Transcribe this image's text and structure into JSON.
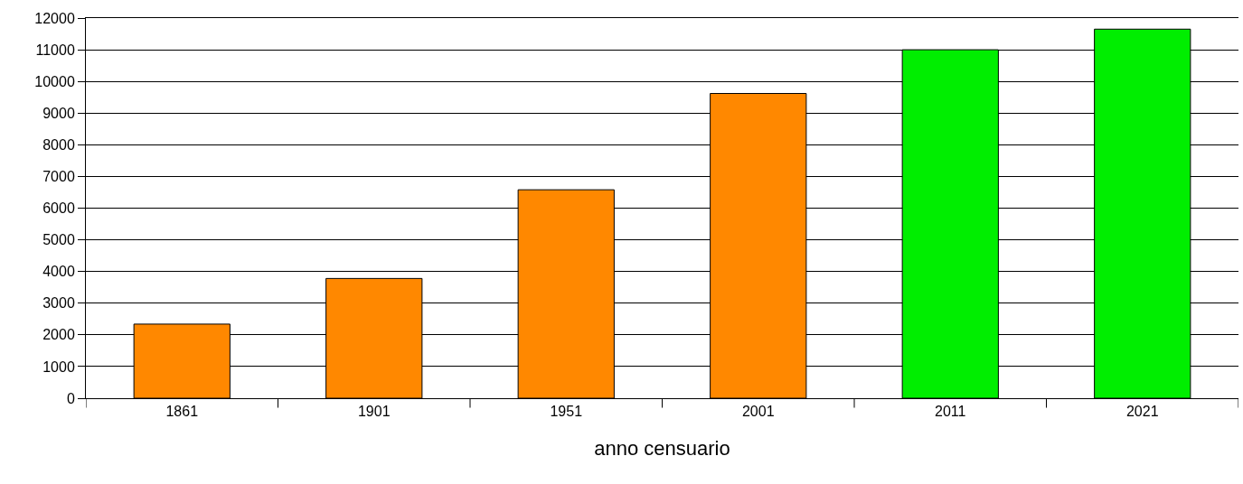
{
  "chart_data": {
    "type": "bar",
    "xlabel": "anno censuario",
    "categories": [
      "1861",
      "1901",
      "1951",
      "2001",
      "2011",
      "2021"
    ],
    "values": [
      2340,
      3780,
      6580,
      9620,
      11000,
      11650
    ],
    "colors": [
      "#ff8800",
      "#ff8800",
      "#ff8800",
      "#ff8800",
      "#00ee00",
      "#00ee00"
    ],
    "ylim": [
      0,
      12000
    ],
    "yticks": [
      0,
      1000,
      2000,
      3000,
      4000,
      5000,
      6000,
      7000,
      8000,
      9000,
      10000,
      11000,
      12000
    ],
    "grid": "y"
  }
}
